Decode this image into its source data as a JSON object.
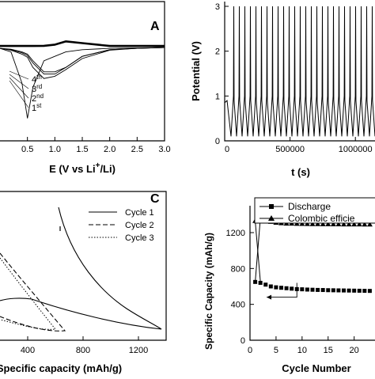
{
  "chart_data": [
    {
      "panel_label": "A",
      "type": "line",
      "xlabel_main": "E (V vs Li",
      "xlabel_sup": "+",
      "xlabel_tail": "/Li)",
      "ylabel": "",
      "xlim": [
        0.0,
        3.0
      ],
      "xticks": [
        "0.5",
        "1.0",
        "1.5",
        "2.0",
        "2.5",
        "3.0"
      ],
      "cycle_labels": [
        {
          "num": "4",
          "sup": "th"
        },
        {
          "num": "3",
          "sup": "rd"
        },
        {
          "num": "2",
          "sup": "nd"
        },
        {
          "num": "1",
          "sup": "st"
        }
      ],
      "series": [
        {
          "x": [
            0.0,
            0.2,
            0.4,
            0.5,
            0.6,
            0.8,
            1.0,
            1.2,
            1.5,
            2.0,
            2.5,
            3.0
          ],
          "y": [
            -0.02,
            -0.04,
            -0.1,
            -0.15,
            -0.3,
            -0.55,
            -0.55,
            -0.45,
            -0.2,
            -0.05,
            -0.02,
            0.0
          ]
        },
        {
          "x": [
            0.0,
            0.2,
            0.4,
            0.5,
            0.6,
            0.8,
            1.0,
            1.2,
            1.5,
            2.0,
            2.5,
            3.0
          ],
          "y": [
            -0.02,
            -0.05,
            -0.12,
            -0.18,
            -0.35,
            -0.6,
            -0.6,
            -0.45,
            -0.2,
            -0.05,
            -0.02,
            0.0
          ]
        },
        {
          "x": [
            0.0,
            0.2,
            0.4,
            0.5,
            0.6,
            0.8,
            1.0,
            1.2,
            1.5,
            2.0,
            2.5,
            3.0
          ],
          "y": [
            -0.02,
            -0.06,
            -0.15,
            -0.22,
            -0.45,
            -0.7,
            -0.65,
            -0.5,
            -0.25,
            -0.06,
            -0.02,
            0.0
          ]
        },
        {
          "x": [
            0.0,
            0.2,
            0.4,
            0.5,
            0.6,
            0.8,
            1.0,
            1.2,
            1.5,
            2.0,
            2.5,
            3.0
          ],
          "y": [
            -0.02,
            -0.1,
            -0.8,
            -1.6,
            -0.9,
            -0.3,
            -0.2,
            -0.1,
            -0.05,
            -0.02,
            -0.01,
            0.0
          ]
        }
      ]
    },
    {
      "panel_label": "",
      "type": "line",
      "xlabel": "t (s)",
      "ylabel": "Potential (V)",
      "xlim": [
        0,
        1150000
      ],
      "ylim": [
        0,
        3
      ],
      "xticks": [
        "0",
        "500000",
        "1000000"
      ],
      "yticks": [
        "0",
        "1",
        "2",
        "3"
      ],
      "series": [
        {
          "name": "",
          "cycles": 26,
          "v_max": 3.0,
          "v_min": 0.1,
          "x_start": 0,
          "x_end": 1150000
        }
      ]
    },
    {
      "panel_label": "C",
      "type": "line",
      "xlabel": "Specific capacity (mAh/g)",
      "ylabel": "",
      "xlim": [
        200,
        1400
      ],
      "xticks": [
        "400",
        "800",
        "1200"
      ],
      "series": [
        {
          "name": "Cycle 1",
          "style": "solid"
        },
        {
          "name": "Cycle 2",
          "style": "dashed"
        },
        {
          "name": "Cycle 3",
          "style": "dotted"
        }
      ]
    },
    {
      "panel_label": "",
      "type": "scatter",
      "xlabel": "Cycle Number",
      "ylabel": "Specific Capacity (mAh/g)",
      "xlim": [
        0,
        24
      ],
      "ylim": [
        0,
        1500
      ],
      "xticks": [
        "0",
        "5",
        "10",
        "15",
        "20"
      ],
      "yticks": [
        "0",
        "400",
        "800",
        "1200"
      ],
      "x": [
        1,
        2,
        3,
        4,
        5,
        6,
        7,
        8,
        9,
        10,
        11,
        12,
        13,
        14,
        15,
        16,
        17,
        18,
        19,
        20,
        21,
        22,
        23,
        24
      ],
      "series": [
        {
          "name": "Discharge",
          "marker": "square",
          "values": [
            650,
            640,
            620,
            600,
            590,
            585,
            580,
            575,
            570,
            568,
            565,
            563,
            561,
            560,
            558,
            557,
            556,
            555,
            554,
            553,
            552,
            551,
            550,
            549
          ]
        },
        {
          "name": "Colombic efficie",
          "marker": "triangle",
          "values": [
            1330,
            1365,
            1340,
            1320,
            1310,
            1305,
            1300,
            1300,
            1298,
            1297,
            1296,
            1295,
            1295,
            1294,
            1294,
            1293,
            1293,
            1292,
            1292,
            1291,
            1291,
            1290,
            1290,
            1290
          ]
        },
        {
          "name": "",
          "marker": "none",
          "values": [
            1330,
            650
          ]
        }
      ]
    }
  ]
}
